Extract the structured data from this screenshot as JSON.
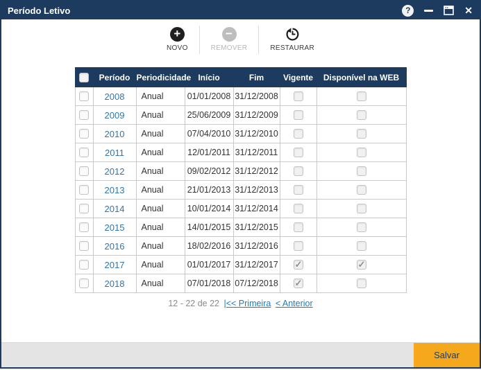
{
  "window": {
    "title": "Período Letivo",
    "controls": {
      "help": "?",
      "close": "✕"
    }
  },
  "toolbar": {
    "buttons": [
      {
        "id": "novo",
        "label": "NOVO",
        "icon": "plus-circle-icon",
        "disabled": false
      },
      {
        "id": "remover",
        "label": "REMOVER",
        "icon": "minus-circle-icon",
        "disabled": true
      },
      {
        "id": "restaurar",
        "label": "RESTAURAR",
        "icon": "restore-history-icon",
        "disabled": false
      }
    ]
  },
  "table": {
    "columns": {
      "periodo": "Período",
      "periodicidade": "Periodicidade",
      "inicio": "Início",
      "fim": "Fim",
      "vigente": "Vigente",
      "disponivel_web": "Disponível na WEB"
    },
    "rows": [
      {
        "periodo": "2008",
        "periodicidade": "Anual",
        "inicio": "01/01/2008",
        "fim": "31/12/2008",
        "vigente": false,
        "disponivel_web": false
      },
      {
        "periodo": "2009",
        "periodicidade": "Anual",
        "inicio": "25/06/2009",
        "fim": "31/12/2009",
        "vigente": false,
        "disponivel_web": false
      },
      {
        "periodo": "2010",
        "periodicidade": "Anual",
        "inicio": "07/04/2010",
        "fim": "31/12/2010",
        "vigente": false,
        "disponivel_web": false
      },
      {
        "periodo": "2011",
        "periodicidade": "Anual",
        "inicio": "12/01/2011",
        "fim": "31/12/2011",
        "vigente": false,
        "disponivel_web": false
      },
      {
        "periodo": "2012",
        "periodicidade": "Anual",
        "inicio": "09/02/2012",
        "fim": "31/12/2012",
        "vigente": false,
        "disponivel_web": false
      },
      {
        "periodo": "2013",
        "periodicidade": "Anual",
        "inicio": "21/01/2013",
        "fim": "31/12/2013",
        "vigente": false,
        "disponivel_web": false
      },
      {
        "periodo": "2014",
        "periodicidade": "Anual",
        "inicio": "10/01/2014",
        "fim": "31/12/2014",
        "vigente": false,
        "disponivel_web": false
      },
      {
        "periodo": "2015",
        "periodicidade": "Anual",
        "inicio": "14/01/2015",
        "fim": "31/12/2015",
        "vigente": false,
        "disponivel_web": false
      },
      {
        "periodo": "2016",
        "periodicidade": "Anual",
        "inicio": "18/02/2016",
        "fim": "31/12/2016",
        "vigente": false,
        "disponivel_web": false
      },
      {
        "periodo": "2017",
        "periodicidade": "Anual",
        "inicio": "01/01/2017",
        "fim": "31/12/2017",
        "vigente": true,
        "disponivel_web": true
      },
      {
        "periodo": "2018",
        "periodicidade": "Anual",
        "inicio": "07/01/2018",
        "fim": "07/12/2018",
        "vigente": true,
        "disponivel_web": false
      }
    ]
  },
  "pagination": {
    "range": "12 - 22 de 22",
    "first": "|<< Primeira",
    "previous": "< Anterior"
  },
  "footer": {
    "save": "Salvar"
  },
  "colors": {
    "titlebar": "#1c3b5e",
    "table_header": "#1c3b5e",
    "link_blue": "#2e76ae",
    "pagination_link": "#1e7cba",
    "save_button": "#f5a81c",
    "save_text": "#1c3b5e",
    "footer_bg": "#e4e4e4",
    "grid_border": "#c9c9c9"
  }
}
